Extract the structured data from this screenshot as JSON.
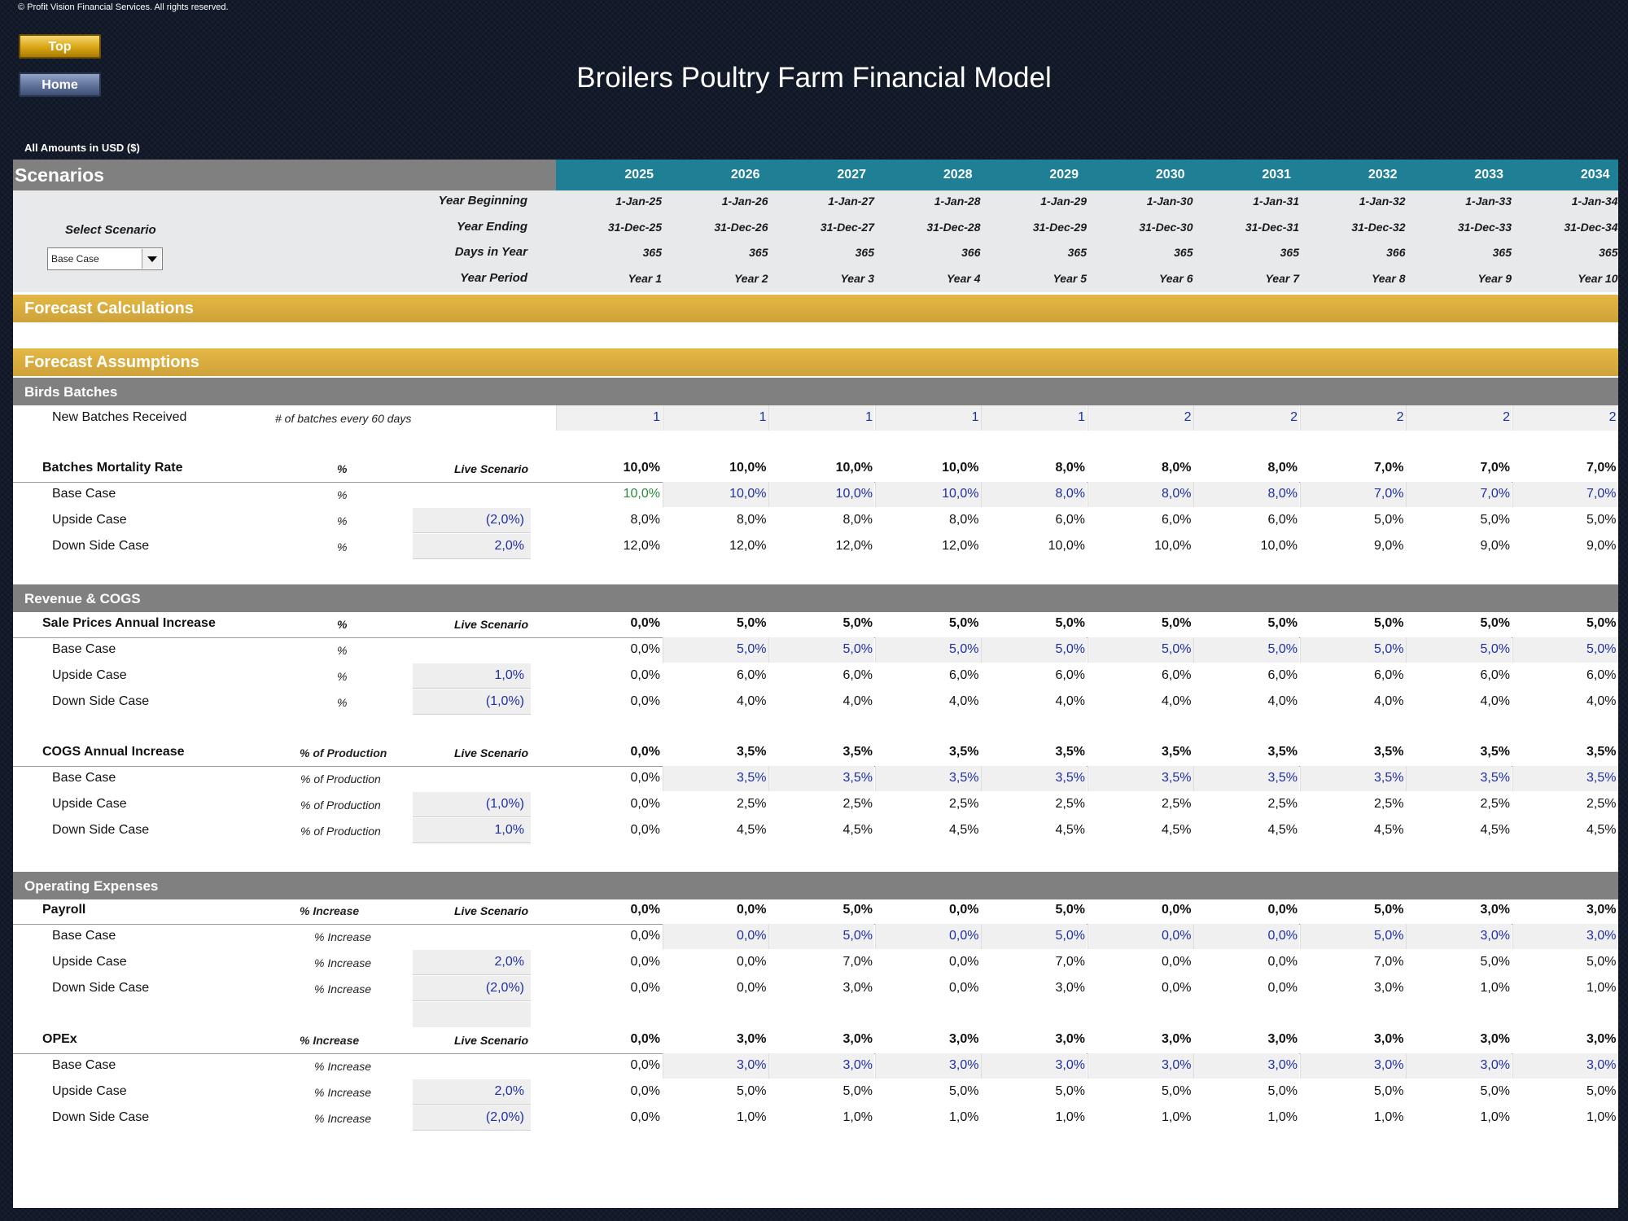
{
  "copyright": "© Profit Vision Financial Services. All rights reserved.",
  "nav": {
    "top_label": "Top",
    "home_label": "Home"
  },
  "title": "Broilers Poultry Farm Financial Model",
  "amounts_note": "All Amounts in  USD ($)",
  "scenarios_title": "Scenarios",
  "years": [
    "2025",
    "2026",
    "2027",
    "2028",
    "2029",
    "2030",
    "2031",
    "2032",
    "2033",
    "2034"
  ],
  "period_labels": {
    "year_beginning": "Year Beginning",
    "year_ending": "Year Ending",
    "days_in_year": "Days in Year",
    "year_period": "Year Period"
  },
  "year_beginning": [
    "1-Jan-25",
    "1-Jan-26",
    "1-Jan-27",
    "1-Jan-28",
    "1-Jan-29",
    "1-Jan-30",
    "1-Jan-31",
    "1-Jan-32",
    "1-Jan-33",
    "1-Jan-34"
  ],
  "year_ending": [
    "31-Dec-25",
    "31-Dec-26",
    "31-Dec-27",
    "31-Dec-28",
    "31-Dec-29",
    "31-Dec-30",
    "31-Dec-31",
    "31-Dec-32",
    "31-Dec-33",
    "31-Dec-34"
  ],
  "days_in_year": [
    "365",
    "365",
    "365",
    "366",
    "365",
    "365",
    "365",
    "366",
    "365",
    "365"
  ],
  "year_period": [
    "Year 1",
    "Year 2",
    "Year 3",
    "Year 4",
    "Year 5",
    "Year 6",
    "Year 7",
    "Year 8",
    "Year 9",
    "Year 10"
  ],
  "select_scenario_label": "Select Scenario",
  "selected_scenario": "Base Case",
  "forecast_calculations": "Forecast Calculations",
  "forecast_assumptions": "Forecast Assumptions",
  "sections": [
    {
      "title": "Birds Batches",
      "blocks": [
        {
          "type": "simple",
          "label": "New Batches Received",
          "unit": "# of batches every 60 days",
          "values": [
            "1",
            "1",
            "1",
            "1",
            "1",
            "2",
            "2",
            "2",
            "2",
            "2"
          ]
        },
        {
          "type": "scenario",
          "label": "Batches Mortality Rate",
          "unit": "%",
          "live_label": "Live Scenario",
          "live": [
            "10,0%",
            "10,0%",
            "10,0%",
            "10,0%",
            "8,0%",
            "8,0%",
            "8,0%",
            "7,0%",
            "7,0%",
            "7,0%"
          ],
          "cases": [
            {
              "label": "Base Case",
              "unit": "%",
              "input": "",
              "values": [
                "10,0%",
                "10,0%",
                "10,0%",
                "10,0%",
                "8,0%",
                "8,0%",
                "8,0%",
                "7,0%",
                "7,0%",
                "7,0%"
              ]
            },
            {
              "label": "Upside Case",
              "unit": "%",
              "input": "(2,0%)",
              "values": [
                "8,0%",
                "8,0%",
                "8,0%",
                "8,0%",
                "6,0%",
                "6,0%",
                "6,0%",
                "5,0%",
                "5,0%",
                "5,0%"
              ]
            },
            {
              "label": "Down Side Case",
              "unit": "%",
              "input": "2,0%",
              "values": [
                "12,0%",
                "12,0%",
                "12,0%",
                "12,0%",
                "10,0%",
                "10,0%",
                "10,0%",
                "9,0%",
                "9,0%",
                "9,0%"
              ]
            }
          ]
        }
      ]
    },
    {
      "title": "Revenue & COGS",
      "blocks": [
        {
          "type": "scenario",
          "label": "Sale Prices Annual Increase",
          "unit": "%",
          "live_label": "Live Scenario",
          "live": [
            "0,0%",
            "5,0%",
            "5,0%",
            "5,0%",
            "5,0%",
            "5,0%",
            "5,0%",
            "5,0%",
            "5,0%",
            "5,0%"
          ],
          "cases": [
            {
              "label": "Base Case",
              "unit": "%",
              "input": "",
              "values": [
                "0,0%",
                "5,0%",
                "5,0%",
                "5,0%",
                "5,0%",
                "5,0%",
                "5,0%",
                "5,0%",
                "5,0%",
                "5,0%"
              ]
            },
            {
              "label": "Upside Case",
              "unit": "%",
              "input": "1,0%",
              "values": [
                "0,0%",
                "6,0%",
                "6,0%",
                "6,0%",
                "6,0%",
                "6,0%",
                "6,0%",
                "6,0%",
                "6,0%",
                "6,0%"
              ]
            },
            {
              "label": "Down Side Case",
              "unit": "%",
              "input": "(1,0%)",
              "values": [
                "0,0%",
                "4,0%",
                "4,0%",
                "4,0%",
                "4,0%",
                "4,0%",
                "4,0%",
                "4,0%",
                "4,0%",
                "4,0%"
              ]
            }
          ]
        },
        {
          "type": "scenario",
          "label": "COGS Annual Increase",
          "unit": "% of Production",
          "live_label": "Live Scenario",
          "live": [
            "0,0%",
            "3,5%",
            "3,5%",
            "3,5%",
            "3,5%",
            "3,5%",
            "3,5%",
            "3,5%",
            "3,5%",
            "3,5%"
          ],
          "cases": [
            {
              "label": "Base Case",
              "unit": "% of Production",
              "input": "",
              "values": [
                "0,0%",
                "3,5%",
                "3,5%",
                "3,5%",
                "3,5%",
                "3,5%",
                "3,5%",
                "3,5%",
                "3,5%",
                "3,5%"
              ]
            },
            {
              "label": "Upside Case",
              "unit": "% of Production",
              "input": "(1,0%)",
              "values": [
                "0,0%",
                "2,5%",
                "2,5%",
                "2,5%",
                "2,5%",
                "2,5%",
                "2,5%",
                "2,5%",
                "2,5%",
                "2,5%"
              ]
            },
            {
              "label": "Down Side Case",
              "unit": "% of Production",
              "input": "1,0%",
              "values": [
                "0,0%",
                "4,5%",
                "4,5%",
                "4,5%",
                "4,5%",
                "4,5%",
                "4,5%",
                "4,5%",
                "4,5%",
                "4,5%"
              ]
            }
          ]
        }
      ]
    },
    {
      "title": "Operating Expenses",
      "blocks": [
        {
          "type": "scenario",
          "label": "Payroll",
          "unit": "% Increase",
          "live_label": "Live Scenario",
          "live": [
            "0,0%",
            "0,0%",
            "5,0%",
            "0,0%",
            "5,0%",
            "0,0%",
            "0,0%",
            "5,0%",
            "3,0%",
            "3,0%"
          ],
          "cases": [
            {
              "label": "Base Case",
              "unit": "% Increase",
              "input": "",
              "values": [
                "0,0%",
                "0,0%",
                "5,0%",
                "0,0%",
                "5,0%",
                "0,0%",
                "0,0%",
                "5,0%",
                "3,0%",
                "3,0%"
              ]
            },
            {
              "label": "Upside Case",
              "unit": "% Increase",
              "input": "2,0%",
              "values": [
                "0,0%",
                "0,0%",
                "7,0%",
                "0,0%",
                "7,0%",
                "0,0%",
                "0,0%",
                "7,0%",
                "5,0%",
                "5,0%"
              ]
            },
            {
              "label": "Down Side Case",
              "unit": "% Increase",
              "input": "(2,0%)",
              "values": [
                "0,0%",
                "0,0%",
                "3,0%",
                "0,0%",
                "3,0%",
                "0,0%",
                "0,0%",
                "3,0%",
                "1,0%",
                "1,0%"
              ]
            }
          ]
        },
        {
          "type": "scenario",
          "label": "OPEx",
          "unit": "% Increase",
          "live_label": "Live Scenario",
          "live": [
            "0,0%",
            "3,0%",
            "3,0%",
            "3,0%",
            "3,0%",
            "3,0%",
            "3,0%",
            "3,0%",
            "3,0%",
            "3,0%"
          ],
          "cases": [
            {
              "label": "Base Case",
              "unit": "% Increase",
              "input": "",
              "values": [
                "0,0%",
                "3,0%",
                "3,0%",
                "3,0%",
                "3,0%",
                "3,0%",
                "3,0%",
                "3,0%",
                "3,0%",
                "3,0%"
              ]
            },
            {
              "label": "Upside Case",
              "unit": "% Increase",
              "input": "2,0%",
              "values": [
                "0,0%",
                "5,0%",
                "5,0%",
                "5,0%",
                "5,0%",
                "5,0%",
                "5,0%",
                "5,0%",
                "5,0%",
                "5,0%"
              ]
            },
            {
              "label": "Down Side Case",
              "unit": "% Increase",
              "input": "(2,0%)",
              "values": [
                "0,0%",
                "1,0%",
                "1,0%",
                "1,0%",
                "1,0%",
                "1,0%",
                "1,0%",
                "1,0%",
                "1,0%",
                "1,0%"
              ]
            }
          ]
        }
      ]
    }
  ]
}
